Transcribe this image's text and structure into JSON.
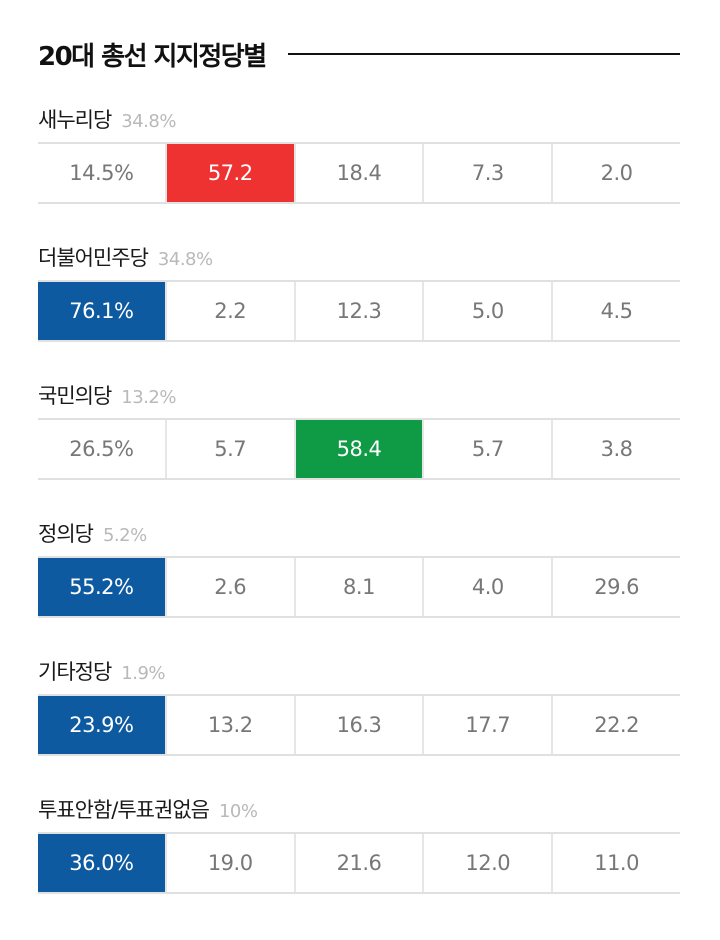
{
  "title": "20대 총선 지지정당별",
  "colors": {
    "minjoo": "#0d5aa1",
    "saenuri": "#ee3131",
    "kookmin": "#0f9a45",
    "text": "#777777",
    "muted": "#b9b9b9"
  },
  "chart_data": {
    "type": "table",
    "title": "20대 총선 지지정당별",
    "rows": [
      {
        "party": "새누리당",
        "share": "34.8%",
        "cells": [
          "14.5%",
          "57.2",
          "18.4",
          "7.3",
          "2.0"
        ],
        "highlight": 1,
        "highlight_color": "#ee3131"
      },
      {
        "party": "더불어민주당",
        "share": "34.8%",
        "cells": [
          "76.1%",
          "2.2",
          "12.3",
          "5.0",
          "4.5"
        ],
        "highlight": 0,
        "highlight_color": "#0d5aa1"
      },
      {
        "party": "국민의당",
        "share": "13.2%",
        "cells": [
          "26.5%",
          "5.7",
          "58.4",
          "5.7",
          "3.8"
        ],
        "highlight": 2,
        "highlight_color": "#0f9a45"
      },
      {
        "party": "정의당",
        "share": "5.2%",
        "cells": [
          "55.2%",
          "2.6",
          "8.1",
          "4.0",
          "29.6"
        ],
        "highlight": 0,
        "highlight_color": "#0d5aa1"
      },
      {
        "party": "기타정당",
        "share": "1.9%",
        "cells": [
          "23.9%",
          "13.2",
          "16.3",
          "17.7",
          "22.2"
        ],
        "highlight": 0,
        "highlight_color": "#0d5aa1"
      },
      {
        "party": "투표안함/투표권없음",
        "share": "10%",
        "cells": [
          "36.0%",
          "19.0",
          "21.6",
          "12.0",
          "11.0"
        ],
        "highlight": 0,
        "highlight_color": "#0d5aa1"
      }
    ]
  }
}
